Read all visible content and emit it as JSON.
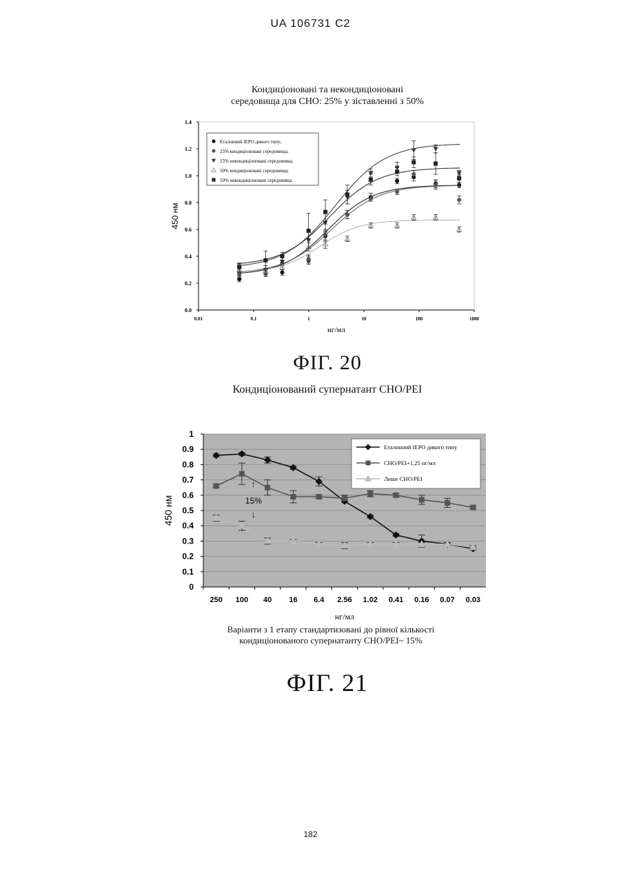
{
  "header": "UA   106731   C2",
  "page_number": "182",
  "chart_data": [
    {
      "type": "scatter",
      "title": "Кондиціоновані та некондиціоновані\nсередовища для CHO: 25% у зіставленні з 50%",
      "caption": "ФІГ. 20",
      "xlabel": "нг/мл",
      "ylabel": "450 нм",
      "xscale": "log",
      "xlim": [
        0.01,
        1000
      ],
      "ylim": [
        0.0,
        1.4
      ],
      "x_ticks": [
        "0.01",
        "0.1",
        "1",
        "10",
        "100",
        "1000"
      ],
      "y_ticks": [
        "0.0",
        "0.2",
        "0.4",
        "0.6",
        "0.8",
        "1.0",
        "1.2",
        "1.4"
      ],
      "legend_position": "top-left",
      "grid": false,
      "x": [
        0.055,
        0.165,
        0.33,
        0.99,
        2.0,
        5.0,
        13.3,
        40,
        80,
        200,
        533
      ],
      "series": [
        {
          "name": "Еталонний fEPO дикого типу;",
          "marker": "circle",
          "color": "#111111",
          "fit": [
            0.26,
            0.93,
            2.2,
            1.05
          ],
          "values": [
            0.23,
            0.27,
            0.28,
            0.37,
            0.55,
            0.71,
            0.84,
            0.96,
            0.99,
            0.94,
            0.93
          ],
          "errors": [
            0.02,
            0.02,
            0.02,
            0.03,
            0.04,
            0.03,
            0.03,
            0.02,
            0.03,
            0.03,
            0.02
          ]
        },
        {
          "name": "25% кондиціоновані середовища;",
          "marker": "circle",
          "color": "#555555",
          "fit": [
            0.27,
            0.93,
            2.6,
            1.0
          ],
          "values": [
            0.26,
            0.27,
            0.35,
            0.38,
            0.56,
            0.71,
            0.83,
            0.88,
            1.01,
            0.93,
            0.82
          ],
          "errors": [
            0.02,
            0.02,
            0.02,
            0.03,
            0.04,
            0.03,
            0.02,
            0.02,
            0.03,
            0.03,
            0.03
          ]
        },
        {
          "name": "25% некондиціоновані середовища;",
          "marker": "triangle-down",
          "color": "#333333",
          "fit": [
            0.31,
            1.24,
            3.0,
            0.95
          ],
          "values": [
            0.31,
            0.3,
            0.36,
            0.52,
            0.65,
            0.84,
            1.02,
            1.06,
            1.19,
            1.2,
            1.02
          ],
          "errors": [
            0.03,
            0.03,
            0.03,
            0.06,
            0.07,
            0.05,
            0.03,
            0.04,
            0.07,
            0.03,
            0.02
          ]
        },
        {
          "name": "50% кондиціоновані середовища;",
          "marker": "triangle-up",
          "color": "#999999",
          "fit": [
            0.28,
            0.67,
            1.6,
            1.2
          ],
          "values": [
            0.3,
            0.29,
            0.32,
            0.47,
            0.49,
            0.53,
            0.63,
            0.63,
            0.69,
            0.69,
            0.6
          ],
          "errors": [
            0.02,
            0.02,
            0.02,
            0.03,
            0.03,
            0.02,
            0.02,
            0.02,
            0.02,
            0.02,
            0.02
          ]
        },
        {
          "name": "50% некондиціоновані середовища",
          "marker": "square",
          "color": "#222222",
          "fit": [
            0.33,
            1.06,
            2.4,
            1.0
          ],
          "values": [
            0.32,
            0.37,
            0.4,
            0.59,
            0.73,
            0.86,
            0.97,
            1.03,
            1.1,
            1.09,
            0.98
          ],
          "errors": [
            0.03,
            0.07,
            0.03,
            0.13,
            0.09,
            0.07,
            0.04,
            0.03,
            0.04,
            0.08,
            0.03
          ]
        }
      ]
    },
    {
      "type": "line",
      "title": "Кондиціонований супернатант CHO/PEI",
      "caption": "ФІГ. 21",
      "xlabel": "нг/мл",
      "ylabel": "450 нм",
      "categories": [
        "250",
        "100",
        "40",
        "16",
        "6.4",
        "2.56",
        "1.02",
        "0.41",
        "0.16",
        "0.07",
        "0.03"
      ],
      "ylim": [
        0,
        1
      ],
      "y_ticks": [
        "0",
        "0.1",
        "0.2",
        "0.3",
        "0.4",
        "0.5",
        "0.6",
        "0.7",
        "0.8",
        "0.9",
        "1"
      ],
      "legend_position": "top-right",
      "grid": true,
      "annotation": "15%",
      "note": "Варіанти з 1 етапу стандартизовані до рівної кількості\nкондиціонованого супернатанту CHO/PEI~ 15%",
      "series": [
        {
          "name": "Еталонний fEPO дикого типу",
          "marker": "diamond",
          "color": "#111111",
          "values": [
            0.86,
            0.87,
            0.83,
            0.78,
            0.69,
            0.56,
            0.46,
            0.34,
            0.3,
            0.28,
            0.25
          ],
          "errors": [
            0.01,
            0.01,
            0.02,
            0.01,
            0.03,
            0.01,
            0.01,
            0.01,
            0.04,
            0.01,
            0.01
          ]
        },
        {
          "name": "CHO/PEI+1,25 нг/мл",
          "marker": "square",
          "color": "#555555",
          "values": [
            0.66,
            0.74,
            0.65,
            0.59,
            0.59,
            0.58,
            0.61,
            0.6,
            0.57,
            0.55,
            0.52
          ],
          "errors": [
            0.01,
            0.07,
            0.05,
            0.04,
            0.01,
            0.02,
            0.02,
            0.01,
            0.03,
            0.03,
            0.01
          ]
        },
        {
          "name": "Лише CHO/PEI",
          "marker": "triangle",
          "color": "#bbbbbb",
          "values": [
            0.45,
            0.4,
            0.3,
            0.3,
            0.28,
            0.27,
            0.28,
            0.28,
            0.28,
            0.28,
            0.26
          ],
          "errors": [
            0.02,
            0.03,
            0.02,
            0.01,
            0.01,
            0.02,
            0.01,
            0.01,
            0.01,
            0.01,
            0.01
          ]
        }
      ]
    }
  ]
}
